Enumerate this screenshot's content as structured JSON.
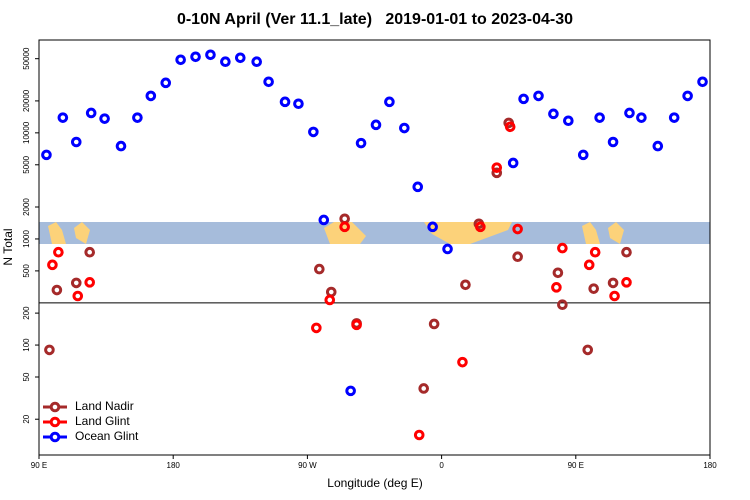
{
  "chart_data": {
    "type": "scatter",
    "title": "0-10N April (Ver 11.1_late)   2019-01-01 to 2023-04-30",
    "x_label": "Longitude (deg E)",
    "y_label": "N Total",
    "log_y": true,
    "legend": "bottom-left",
    "xlim": [
      90,
      540
    ],
    "ylim": [
      9.2,
      75000
    ],
    "xticks": [
      {
        "value": 90,
        "label": "90 E"
      },
      {
        "value": 180,
        "label": "180"
      },
      {
        "value": 270,
        "label": "90 W"
      },
      {
        "value": 360,
        "label": "0"
      },
      {
        "value": 450,
        "label": "90 E"
      },
      {
        "value": 540,
        "label": "180"
      }
    ],
    "yticks": [
      20,
      50,
      100,
      200,
      500,
      1000,
      2000,
      5000,
      10000,
      20000,
      50000
    ],
    "reference_line": 250,
    "series": [
      {
        "name": "Land Nadir",
        "color": "#a52a2a",
        "x": [
          97,
          102,
          115,
          124,
          278,
          286,
          295,
          303,
          348,
          355,
          376,
          385,
          397,
          405,
          411,
          438,
          441,
          458,
          462,
          475,
          484
        ],
        "values": [
          90,
          330,
          385,
          750,
          520,
          316,
          1550,
          160,
          39,
          158,
          370,
          1390,
          4200,
          12400,
          680,
          480,
          240,
          90,
          340,
          385,
          750
        ]
      },
      {
        "name": "Land Glint",
        "color": "#ff0000",
        "x": [
          99,
          103,
          116,
          124,
          276,
          285,
          295,
          303,
          345,
          374,
          386,
          397,
          406,
          411,
          437,
          441,
          459,
          463,
          476,
          484
        ],
        "values": [
          570,
          750,
          290,
          390,
          145,
          266,
          1300,
          155,
          14.2,
          69,
          1300,
          4700,
          11400,
          1240,
          350,
          820,
          570,
          750,
          290,
          390
        ]
      },
      {
        "name": "Ocean Glint",
        "color": "#0000ff",
        "x": [
          95,
          106,
          115,
          125,
          134,
          145,
          156,
          165,
          175,
          185,
          195,
          205,
          215,
          225,
          236,
          244,
          255,
          264,
          274,
          281,
          299,
          306,
          316,
          325,
          335,
          344,
          354,
          364,
          408,
          415,
          425,
          435,
          445,
          455,
          466,
          475,
          486,
          494,
          505,
          516,
          525,
          535
        ],
        "values": [
          6200,
          13900,
          8200,
          15400,
          13600,
          7500,
          13900,
          22300,
          29600,
          48800,
          52100,
          54400,
          46800,
          51000,
          46800,
          30300,
          19600,
          18800,
          10200,
          1510,
          37,
          8000,
          11900,
          19600,
          11100,
          3100,
          1300,
          805,
          5200,
          20900,
          22300,
          15100,
          13000,
          6200,
          13900,
          8200,
          15400,
          13900,
          7500,
          13900,
          22300,
          30300
        ]
      }
    ]
  }
}
